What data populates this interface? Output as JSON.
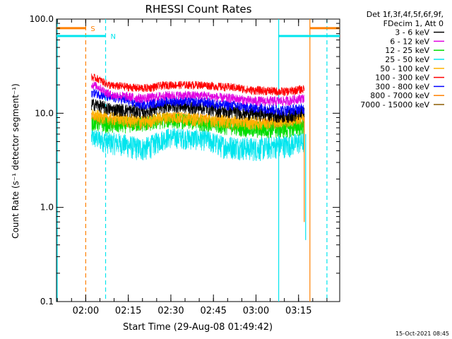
{
  "chart_data": {
    "type": "line",
    "title": "RHESSI Count Rates",
    "xlabel": "Start Time (29-Aug-08 01:49:42)",
    "ylabel": "Count Rate (s⁻¹ detector segment⁻¹)",
    "yscale": "log",
    "ylim": [
      0.1,
      100.0
    ],
    "xlim": [
      "01:49:42",
      "03:29:30"
    ],
    "x_ticks": [
      "02:00",
      "02:15",
      "02:30",
      "02:45",
      "03:00",
      "03:15"
    ],
    "y_ticks": [
      "0.1",
      "1.0",
      "10.0",
      "100.0"
    ],
    "legend_header": [
      "Det 1f,3f,4f,5f,6f,9f,",
      "FDecim 1, Att 0"
    ],
    "legend_position": "top-right",
    "data_start": "02:02",
    "data_end": "03:18",
    "series": [
      {
        "name": "3 - 6 keV",
        "color": "#000000",
        "values": [
          [
            "02:02",
            12.5
          ],
          [
            "02:10",
            11.0
          ],
          [
            "02:20",
            10.5
          ],
          [
            "02:30",
            12.0
          ],
          [
            "02:40",
            11.5
          ],
          [
            "02:50",
            10.5
          ],
          [
            "03:00",
            10.0
          ],
          [
            "03:10",
            9.5
          ],
          [
            "03:17",
            10.0
          ]
        ]
      },
      {
        "name": "6 - 12 keV",
        "color": "#e000e0",
        "values": [
          [
            "02:02",
            20.0
          ],
          [
            "02:10",
            15.5
          ],
          [
            "02:20",
            14.5
          ],
          [
            "02:30",
            15.5
          ],
          [
            "02:40",
            15.5
          ],
          [
            "02:50",
            14.5
          ],
          [
            "03:00",
            13.5
          ],
          [
            "03:10",
            13.5
          ],
          [
            "03:17",
            14.5
          ]
        ]
      },
      {
        "name": "12 - 25 keV",
        "color": "#00dd00",
        "values": [
          [
            "02:02",
            8.0
          ],
          [
            "02:10",
            7.5
          ],
          [
            "02:20",
            7.8
          ],
          [
            "02:30",
            8.5
          ],
          [
            "02:40",
            8.0
          ],
          [
            "02:50",
            7.3
          ],
          [
            "03:00",
            6.8
          ],
          [
            "03:10",
            6.8
          ],
          [
            "03:17",
            7.2
          ]
        ]
      },
      {
        "name": "25 - 50 keV",
        "color": "#00e5ee",
        "values": [
          [
            "02:02",
            5.5
          ],
          [
            "02:10",
            4.9
          ],
          [
            "02:20",
            4.3
          ],
          [
            "02:30",
            5.6
          ],
          [
            "02:40",
            5.4
          ],
          [
            "02:50",
            4.5
          ],
          [
            "03:00",
            4.3
          ],
          [
            "03:10",
            4.6
          ],
          [
            "03:17",
            5.0
          ]
        ]
      },
      {
        "name": "50 - 100 keV",
        "color": "#ffb300",
        "values": [
          [
            "02:02",
            9.5
          ],
          [
            "02:10",
            8.8
          ],
          [
            "02:20",
            8.3
          ],
          [
            "02:30",
            9.2
          ],
          [
            "02:40",
            8.7
          ],
          [
            "02:50",
            8.3
          ],
          [
            "03:00",
            8.0
          ],
          [
            "03:10",
            8.5
          ],
          [
            "03:17",
            9.0
          ]
        ]
      },
      {
        "name": "100 - 300 keV",
        "color": "#ff0000",
        "values": [
          [
            "02:02",
            24.0
          ],
          [
            "02:10",
            19.5
          ],
          [
            "02:20",
            18.5
          ],
          [
            "02:30",
            20.0
          ],
          [
            "02:40",
            20.0
          ],
          [
            "02:50",
            19.0
          ],
          [
            "03:00",
            17.5
          ],
          [
            "03:10",
            17.0
          ],
          [
            "03:17",
            18.0
          ]
        ]
      },
      {
        "name": "300 - 800 keV",
        "color": "#0000ff",
        "values": [
          [
            "02:02",
            16.5
          ],
          [
            "02:10",
            14.5
          ],
          [
            "02:20",
            12.5
          ],
          [
            "02:30",
            13.5
          ],
          [
            "02:40",
            13.2
          ],
          [
            "02:50",
            12.2
          ],
          [
            "03:00",
            11.5
          ],
          [
            "03:10",
            10.8
          ],
          [
            "03:17",
            11.2
          ]
        ]
      },
      {
        "name": "800 - 7000 keV",
        "color": "#ff8000",
        "values": [
          [
            "02:02",
            9.0
          ],
          [
            "02:10",
            8.2
          ],
          [
            "02:20",
            7.8
          ],
          [
            "02:30",
            9.0
          ],
          [
            "02:40",
            8.6
          ],
          [
            "02:50",
            7.8
          ],
          [
            "03:00",
            7.6
          ],
          [
            "03:10",
            7.8
          ],
          [
            "03:17",
            8.2
          ]
        ]
      },
      {
        "name": "7000 - 15000 keV",
        "color": "#8b5a00",
        "values": []
      }
    ],
    "flags": [
      {
        "label": "S",
        "color": "#ff8000",
        "segments": [
          [
            "01:49:42",
            "02:00"
          ],
          [
            "03:19",
            "03:29:30"
          ]
        ],
        "level": 80.0
      },
      {
        "label": "N",
        "color": "#00e5ee",
        "segments": [
          [
            "01:49:42",
            "02:07"
          ],
          [
            "03:08",
            "03:29:30"
          ]
        ],
        "level": 66.0
      }
    ],
    "vlines": [
      {
        "time": "01:49:42",
        "color": "#00e5ee",
        "style": "solid"
      },
      {
        "time": "02:00",
        "color": "#ff8000",
        "style": "dashed"
      },
      {
        "time": "02:07",
        "color": "#00e5ee",
        "style": "dashed"
      },
      {
        "time": "03:08",
        "color": "#00e5ee",
        "style": "solid"
      },
      {
        "time": "03:19",
        "color": "#ff8000",
        "style": "solid"
      },
      {
        "time": "03:25",
        "color": "#00e5ee",
        "style": "dashed"
      }
    ],
    "footer_timestamp": "15-Oct-2021 08:45"
  }
}
